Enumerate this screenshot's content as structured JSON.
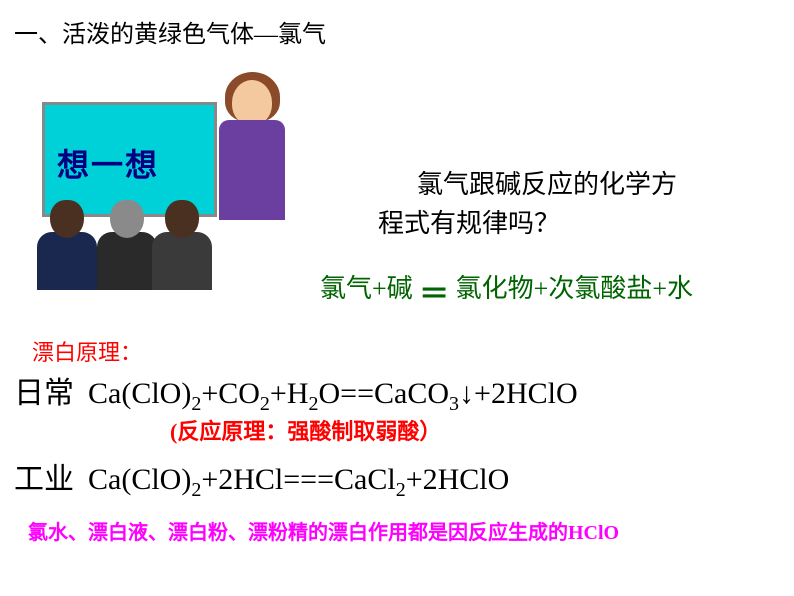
{
  "title": "一、活泼的黄绿色气体—氯气",
  "board": {
    "text": "想一想"
  },
  "question": {
    "line1_prefix": "氯气跟碱反应的化学方",
    "line2": "程式有",
    "highlight": "规律",
    "suffix": "吗？"
  },
  "rule": {
    "left": "氯气+碱",
    "eq": "＝",
    "right": "氯化物+次氯酸盐+水"
  },
  "principle_label": "漂白原理：",
  "eq1": {
    "label": "日常",
    "formula_html": "Ca(ClO)<sub>2</sub>+CO<sub>2</sub>+H<sub>2</sub>O==CaCO<sub>3</sub>↓+2HClO"
  },
  "note1": "(反应原理：强酸制取弱酸）",
  "eq2": {
    "label": "工业",
    "formula_html": "Ca(ClO)<sub>2</sub>+2HCl===CaCl<sub>2</sub>+2HClO"
  },
  "bottom_note": "氯水、漂白液、漂白粉、漂粉精的漂白作用都是因反应生成的HClO",
  "colors": {
    "title": "#000000",
    "board_bg": "#00d0d8",
    "board_text": "#000080",
    "rule_text": "#006400",
    "red": "#ff0000",
    "magenta": "#ff00ff"
  }
}
